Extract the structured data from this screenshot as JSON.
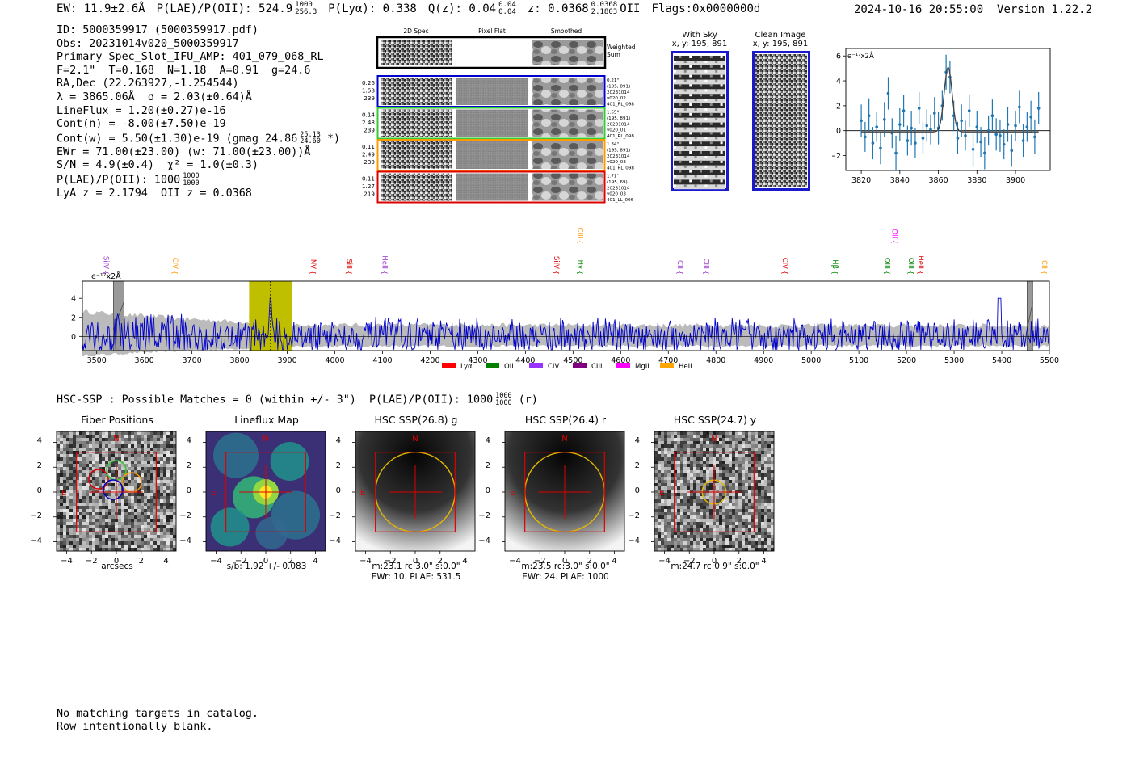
{
  "header": {
    "ew": "EW: 11.9±2.6Å",
    "plae": "P(LAE)/P(OII): 524.9",
    "plae_sup": "1000",
    "plae_sub": "256.3",
    "plya": "P(Lyα): 0.338",
    "qz": "Q(z): 0.04",
    "qz_sup": "0.04",
    "qz_sub": "0.04",
    "z": "z: 0.0368",
    "z_sup": "0.0368",
    "z_sub": "2.1803",
    "z_line": "OII",
    "flags": "Flags:0x0000000d",
    "timestamp": "2024-10-16 20:55:00",
    "version": "Version 1.22.2"
  },
  "info_lines": [
    "ID: 5000359917 (5000359917.pdf)",
    "Obs: 20231014v020_5000359917",
    "Primary Spec_Slot_IFU_AMP: 401_079_068_RL",
    "F=2.1\"  T=0.168  N=1.18  A=0.91  g=24.6",
    "RA,Dec (22.263927,-1.254544)",
    "λ = 3865.06Å  σ = 2.03(±0.64)Å",
    "LineFlux = 1.20(±0.27)e-16",
    "Cont(n) = -8.00(±7.50)e-19",
    "Cont(w) = 5.50(±1.30)e-19 (gmag 24.86",
    "EWr = 71.00(±23.00) (w: 71.00(±23.00))Å",
    "S/N = 4.9(±0.4)  χ² = 1.0(±0.3)",
    "P(LAE)/P(OII): 1000",
    "LyA z = 2.1794  OII z = 0.0368"
  ],
  "info_extras": {
    "gmag_sup": "25.13",
    "gmag_sub": "24.60",
    "gmag_close": " *)",
    "plae_sup": "1000",
    "plae_sub": "1000"
  },
  "cutouts": {
    "col_headers": [
      "2D Spec",
      "Pixel Flat",
      "Smoothed"
    ],
    "weighted_sum": "Weighted\nSum",
    "rows": [
      {
        "left": [
          "0.26",
          "1.58",
          "239"
        ],
        "right": [
          "0.21\"",
          "(195, 891)",
          "20231014",
          "v020_02",
          "401_RL_098"
        ],
        "color": "#0000cc"
      },
      {
        "left": [
          "0.14",
          "2.48",
          "239"
        ],
        "right": [
          "1.55\"",
          "(195, 891)",
          "20231014",
          "v020_01",
          "401_RL_098"
        ],
        "color": "#33cc33"
      },
      {
        "left": [
          "0.11",
          "2.49",
          "239"
        ],
        "right": [
          "1.34\"",
          "(195, 891)",
          "20231014",
          "v020_03",
          "401_RL_098"
        ],
        "color": "#ff9900"
      },
      {
        "left": [
          "0.11",
          "1.27",
          "219"
        ],
        "right": [
          "1.71\"",
          "(195, 69)",
          "20231014",
          "v020_03",
          "401_LL_006"
        ],
        "color": "#dd0000"
      }
    ]
  },
  "with_sky": {
    "title": "With Sky",
    "coords": "x, y: 195, 891"
  },
  "clean_image": {
    "title": "Clean Image",
    "coords": "x, y: 195, 891"
  },
  "colors": {
    "spectrum": "#0000cc",
    "fit_points": "#1f77b4",
    "highlight": "#bfbf00",
    "gray_fill": "#bbbbbb",
    "box_red": "#dd0000",
    "circle_yellow": "#e6b800"
  },
  "chart_data": [
    {
      "type": "scatter",
      "name": "zoom-fit",
      "unit_label": "e⁻¹⁷x2Å",
      "xlim": [
        3812,
        3918
      ],
      "ylim": [
        -3.2,
        6.6
      ],
      "xticks": [
        3820,
        3840,
        3860,
        3880,
        3900
      ],
      "yticks": [
        -2,
        0,
        2,
        4,
        6
      ],
      "x": [
        3820,
        3822,
        3824,
        3826,
        3828,
        3830,
        3832,
        3834,
        3836,
        3838,
        3840,
        3842,
        3844,
        3846,
        3848,
        3850,
        3852,
        3854,
        3856,
        3858,
        3860,
        3862,
        3864,
        3866,
        3868,
        3870,
        3872,
        3874,
        3876,
        3878,
        3880,
        3882,
        3884,
        3886,
        3888,
        3890,
        3892,
        3894,
        3896,
        3898,
        3900,
        3902,
        3904,
        3906,
        3908,
        3910,
        3912
      ],
      "y": [
        0.8,
        -0.5,
        1.2,
        -1.0,
        0.3,
        -1.4,
        0.9,
        3.0,
        -0.2,
        -1.8,
        0.5,
        1.6,
        -0.8,
        0.2,
        -1.0,
        1.8,
        -0.6,
        0.4,
        0.1,
        1.4,
        0.2,
        2.0,
        4.7,
        4.3,
        1.2,
        -0.6,
        0.8,
        -0.4,
        1.6,
        -1.5,
        0.3,
        -0.9,
        -1.8,
        0.0,
        1.2,
        -0.3,
        -0.4,
        -1.1,
        0.5,
        -1.6,
        0.4,
        1.9,
        -0.8,
        0.3,
        1.1,
        -0.5,
        1.8
      ],
      "err": [
        1.3,
        1.2,
        1.4,
        1.3,
        1.2,
        1.3,
        1.4,
        1.3,
        1.2,
        1.4,
        1.3,
        1.3,
        1.2,
        1.4,
        1.2,
        1.3,
        1.3,
        1.3,
        1.2,
        1.3,
        1.3,
        1.2,
        1.4,
        1.3,
        1.2,
        1.3,
        1.3,
        1.2,
        1.3,
        1.4,
        1.3,
        1.2,
        1.3,
        1.2,
        1.3,
        1.3,
        1.3,
        1.2,
        1.4,
        1.3,
        1.2,
        1.3,
        1.3,
        1.2,
        1.3,
        1.4,
        1.3
      ],
      "model": {
        "center": 3865.06,
        "sigma": 2.03,
        "amplitude": 5.2,
        "baseline": -0.1
      }
    },
    {
      "type": "line",
      "name": "full-spectrum",
      "unit_label": "e⁻¹⁷x2Å",
      "xlim": [
        3470,
        5500
      ],
      "ylim": [
        -1.5,
        5.8
      ],
      "xticks": [
        3500,
        3600,
        3700,
        3800,
        3900,
        4000,
        4100,
        4200,
        4300,
        4400,
        4500,
        4600,
        4700,
        4800,
        4900,
        5000,
        5100,
        5200,
        5300,
        5400,
        5500
      ],
      "yticks": [
        0,
        2,
        4
      ],
      "highlight_range": [
        3820,
        3910
      ],
      "line_marker": 3865,
      "masked": [
        [
          3535,
          3557
        ],
        [
          5453,
          5465
        ]
      ],
      "emission_lines": [
        {
          "label": "SiIV",
          "x": 3510,
          "color": "#9933cc",
          "row": "low"
        },
        {
          "label": "CIV",
          "x": 3655,
          "color": "#ff9900",
          "row": "low"
        },
        {
          "label": "NV",
          "x": 3945,
          "color": "#dd0000",
          "row": "low"
        },
        {
          "label": "SiII",
          "x": 4020,
          "color": "#dd0000",
          "row": "low"
        },
        {
          "label": "HeII",
          "x": 4095,
          "color": "#9933cc",
          "row": "low"
        },
        {
          "label": "SiIV",
          "x": 4455,
          "color": "#dd0000",
          "row": "low"
        },
        {
          "label": "Hγ",
          "x": 4505,
          "color": "#008800",
          "row": "low"
        },
        {
          "label": "CIII",
          "x": 4505,
          "color": "#ff9900",
          "row": "high"
        },
        {
          "label": "CII",
          "x": 4715,
          "color": "#9933cc",
          "row": "low"
        },
        {
          "label": "CIII",
          "x": 4770,
          "color": "#9933cc",
          "row": "low"
        },
        {
          "label": "CIV",
          "x": 4935,
          "color": "#dd0000",
          "row": "low"
        },
        {
          "label": "Hβ",
          "x": 5040,
          "color": "#008800",
          "row": "low"
        },
        {
          "label": "OIII",
          "x": 5150,
          "color": "#008800",
          "row": "low"
        },
        {
          "label": "OII",
          "x": 5165,
          "color": "#ff00ff",
          "row": "high"
        },
        {
          "label": "OIII",
          "x": 5200,
          "color": "#008800",
          "row": "low"
        },
        {
          "label": "HeII",
          "x": 5220,
          "color": "#dd0000",
          "row": "low"
        },
        {
          "label": "CII",
          "x": 5480,
          "color": "#ff9900",
          "row": "low"
        }
      ],
      "legend": [
        {
          "label": "Lyα",
          "color": "#ff0000"
        },
        {
          "label": "OII",
          "color": "#008000"
        },
        {
          "label": "CIV",
          "color": "#9933ff"
        },
        {
          "label": "CIII",
          "color": "#800080"
        },
        {
          "label": "MgII",
          "color": "#ff00ff"
        },
        {
          "label": "HeII",
          "color": "#ffa500"
        }
      ]
    }
  ],
  "hsc": {
    "summary": "HSC-SSP : Possible Matches = 0 (within +/- 3\")  P(LAE)/P(OII): 1000",
    "summary_sup": "1000",
    "summary_sub": "1000",
    "summary_tail": " (r)",
    "compass_n": "N",
    "compass_e": "E",
    "ticks": [
      "−4",
      "−2",
      "0",
      "2",
      "4"
    ],
    "panels": [
      {
        "title": "Fiber Positions",
        "captions": [
          "arcsecs"
        ],
        "kind": "fibers"
      },
      {
        "title": "Lineflux Map",
        "captions": [
          "s/b: 1.92 +/- 0.083"
        ],
        "kind": "flux"
      },
      {
        "title": "HSC SSP(26.8) g",
        "captions": [
          "m:23.1 rc:3.0\"  s:0.0\"",
          "EWr: 10. PLAE: 531.5"
        ],
        "kind": "hsc_big"
      },
      {
        "title": "HSC SSP(26.4) r",
        "captions": [
          "m:23.5 rc:3.0\"  s:0.0\"",
          "EWr: 24. PLAE: 1000"
        ],
        "kind": "hsc_big"
      },
      {
        "title": "HSC SSP(24.7) y",
        "captions": [
          "m:24.7 rc:0.9\"  s:0.0\""
        ],
        "kind": "hsc_small"
      }
    ]
  },
  "footer": {
    "lines": [
      "No matching targets in catalog.",
      "Row intentionally blank."
    ]
  }
}
